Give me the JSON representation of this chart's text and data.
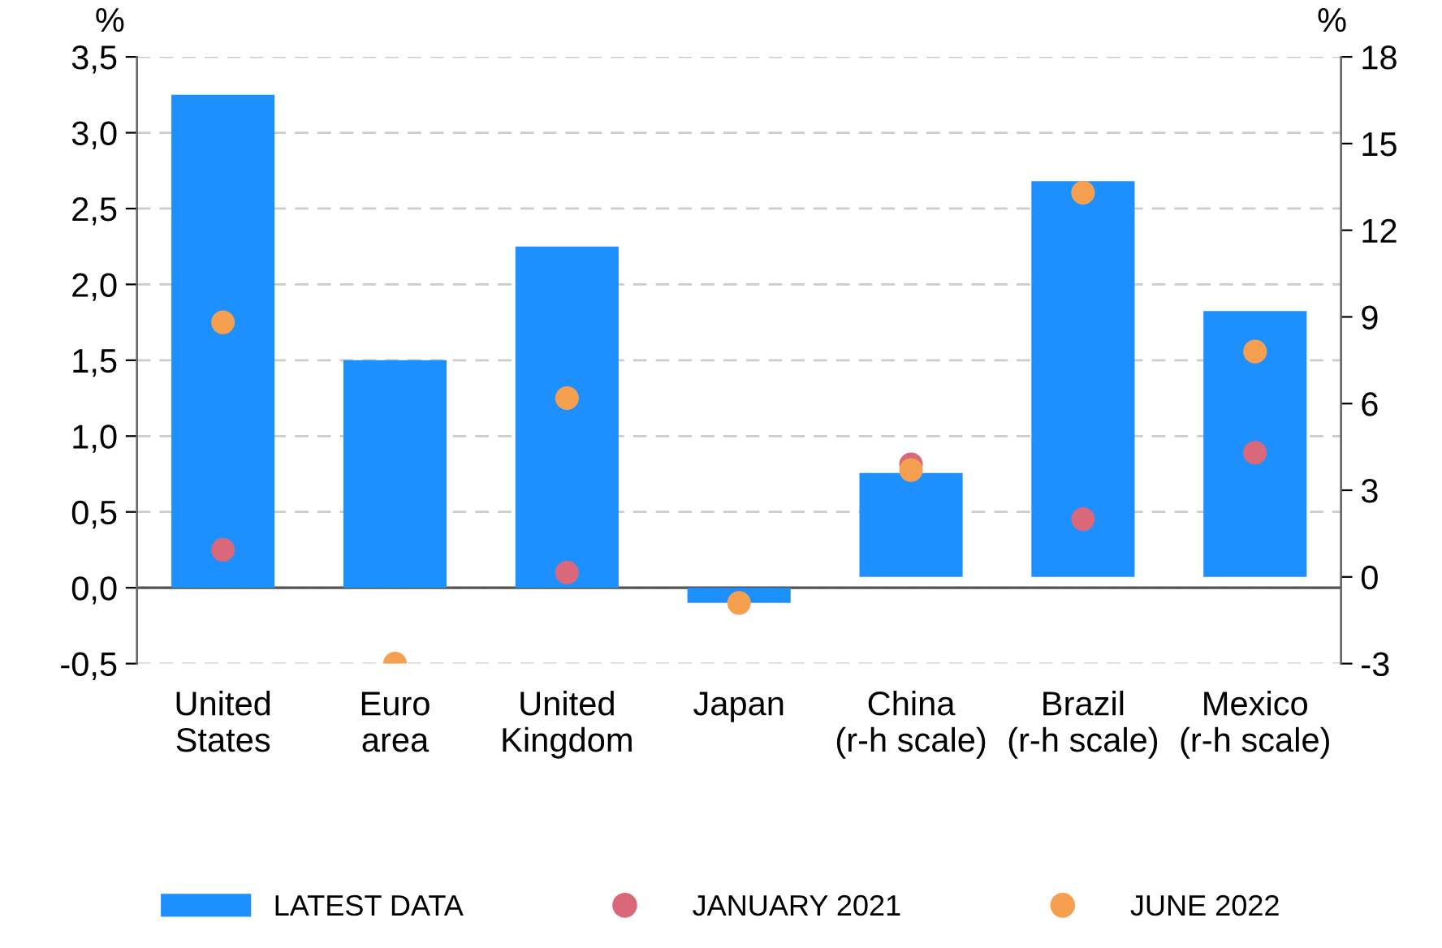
{
  "chart_data": {
    "type": "bar",
    "categories": [
      "United\nStates",
      "Euro\narea",
      "United\nKingdom",
      "Japan",
      "China\n(r-h scale)",
      "Brazil\n(r-h scale)",
      "Mexico\n(r-h scale)"
    ],
    "ylabel": "%",
    "y2label": "%",
    "series": [
      {
        "name": "LATEST DATA",
        "color": "#1e8fff",
        "values": [
          3.25,
          1.5,
          2.25,
          -0.1,
          null,
          null,
          null
        ]
      },
      {
        "color": "#1e8fff",
        "axis": "y2",
        "values": [
          null,
          null,
          null,
          null,
          3.6,
          13.7,
          9.2
        ]
      },
      {
        "name": "JANUARY 2021",
        "type": "scatter",
        "color": "#d9687a",
        "values": [
          0.25,
          null,
          0.1,
          null,
          null,
          null,
          null
        ]
      },
      {
        "type": "scatter",
        "color": "#d9687a",
        "axis": "y2",
        "values": [
          null,
          null,
          null,
          null,
          3.9,
          2.0,
          4.3
        ]
      },
      {
        "name": "JUNE 2022",
        "type": "scatter",
        "color": "#f5a050",
        "values": [
          1.75,
          -0.5,
          1.25,
          -0.1,
          null,
          null,
          null
        ]
      },
      {
        "type": "scatter",
        "color": "#f5a050",
        "axis": "y2",
        "values": [
          null,
          null,
          null,
          null,
          3.7,
          13.3,
          7.8
        ]
      }
    ],
    "ylim": [
      -0.5,
      3.5
    ],
    "yticks": [
      {
        "value": -0.5,
        "label": "-0,5"
      },
      {
        "value": 0,
        "label": "0,0"
      },
      {
        "value": 0.5,
        "label": "0,5"
      },
      {
        "value": 1,
        "label": "1,0"
      },
      {
        "value": 1.5,
        "label": "1,5"
      },
      {
        "value": 2,
        "label": "2,0"
      },
      {
        "value": 2.5,
        "label": "2,5"
      },
      {
        "value": 3,
        "label": "3,0"
      },
      {
        "value": 3.5,
        "label": "3,5"
      }
    ],
    "y2lim": [
      -3,
      18
    ],
    "y2ticks": [
      -3,
      0,
      3,
      6,
      9,
      12,
      15,
      18
    ],
    "ref_lines": [
      {
        "axis": "y",
        "value": 0,
        "color": "#555555"
      }
    ],
    "grid": "y",
    "legend": "bottom",
    "marker": "circle"
  }
}
